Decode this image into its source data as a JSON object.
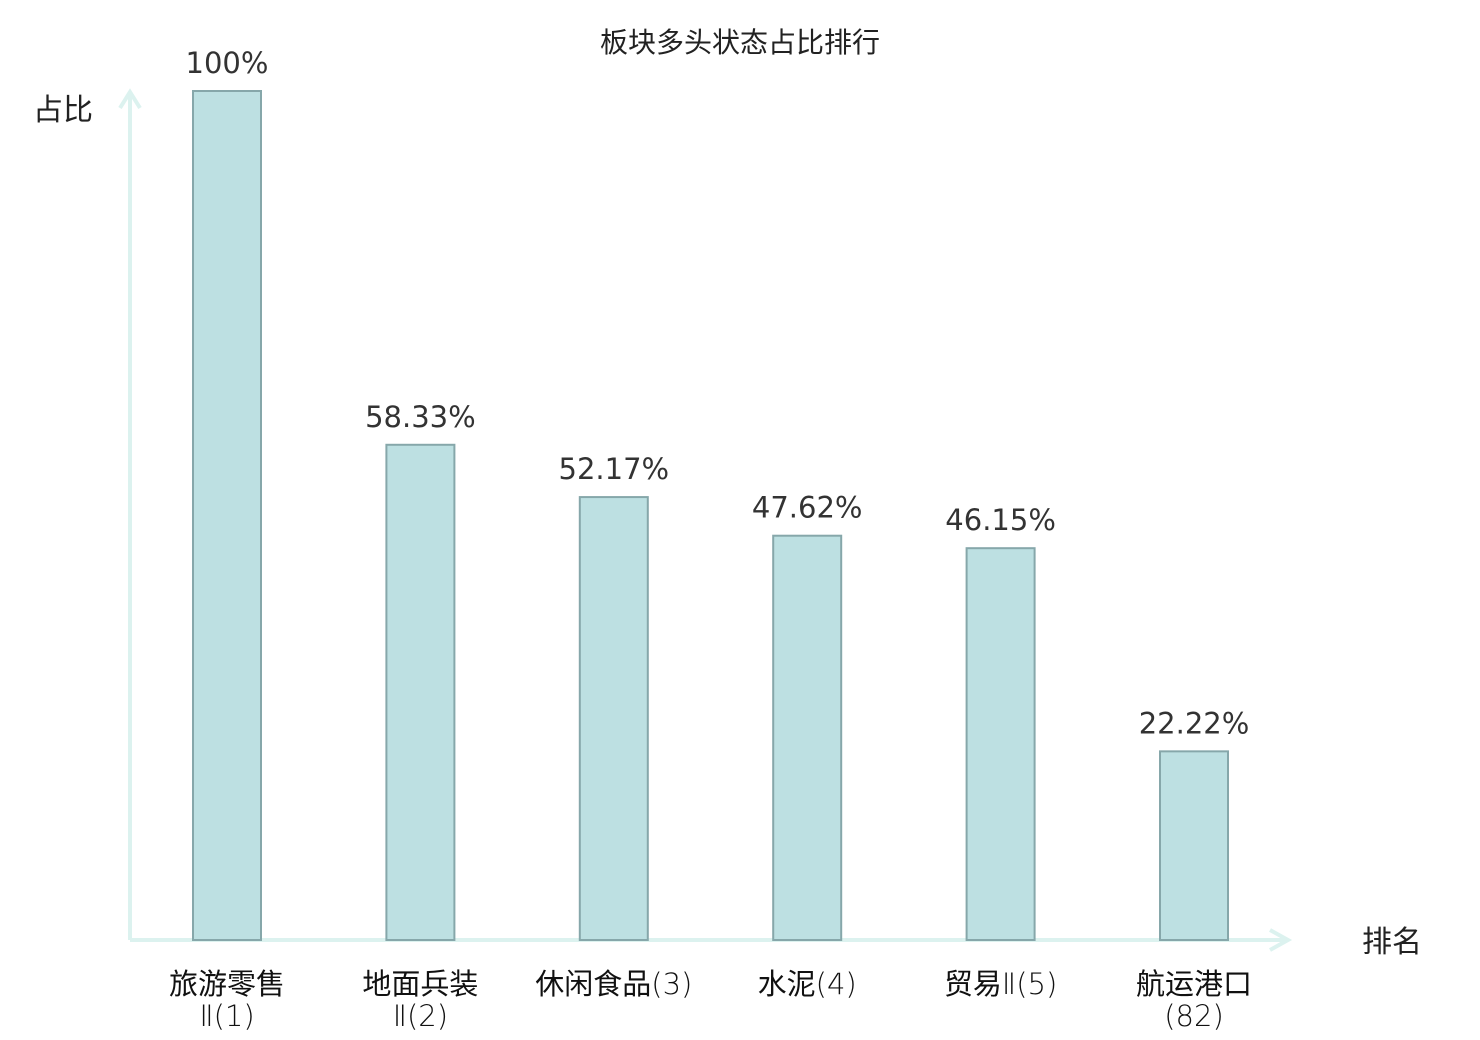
{
  "chart_data": {
    "type": "bar",
    "title": "板块多头状态占比排行",
    "xlabel": "排名",
    "ylabel": "占比",
    "ylim": [
      0,
      100
    ],
    "grid": false,
    "legend": "none",
    "categories": [
      {
        "name": "旅游零售",
        "rank": "Ⅱ(1)",
        "highlight": false
      },
      {
        "name": "地面兵装",
        "rank": "Ⅱ(2)",
        "highlight": false
      },
      {
        "name": "休闲食品",
        "rank": "(3)",
        "highlight": false
      },
      {
        "name": "水泥",
        "rank": "(4)",
        "highlight": false
      },
      {
        "name": "贸易",
        "rank": "Ⅱ(5)",
        "highlight": false
      },
      {
        "name": "航运港口",
        "rank": "(82)",
        "highlight": true
      }
    ],
    "values": [
      100,
      58.33,
      52.17,
      47.62,
      46.15,
      22.22
    ],
    "value_labels": [
      "100%",
      "58.33%",
      "52.17%",
      "47.62%",
      "46.15%",
      "22.22%"
    ],
    "colors": {
      "bar_fill": "#bde0e2",
      "bar_stroke": "#86a7aa",
      "axis": "#dcf2ef",
      "highlight_text": "#e0201c",
      "normal_text": "#111111",
      "value_text": "#333333"
    }
  }
}
